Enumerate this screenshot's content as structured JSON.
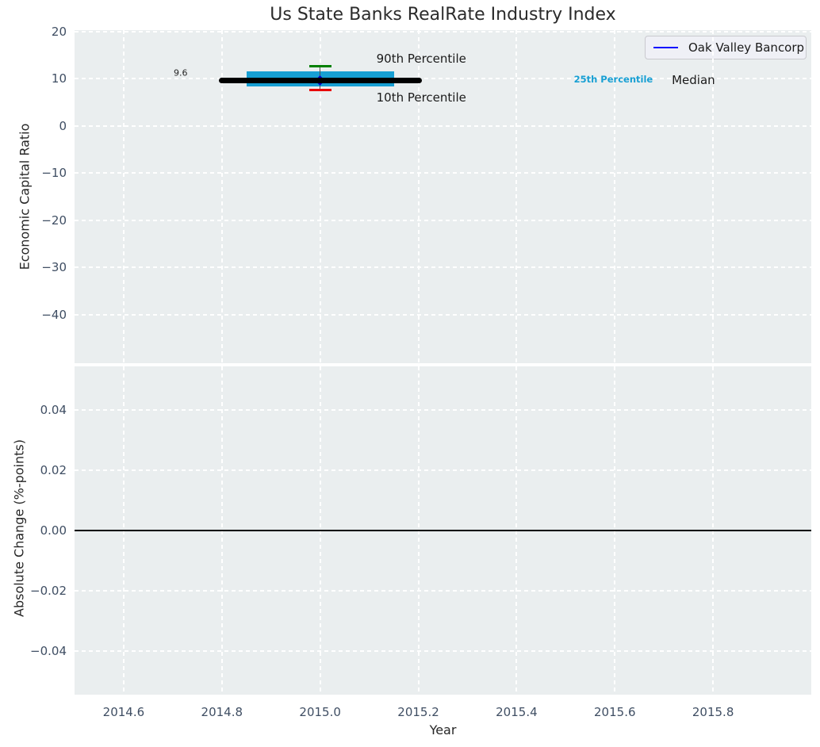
{
  "title": "Us State Banks RealRate Industry Index",
  "legend": {
    "label": "Oak Valley Bancorp",
    "line_color": "#0b0bff"
  },
  "colors": {
    "plot_bg": "#eaeeef",
    "grid": "#ffffff",
    "band": "#179fd3",
    "median_line": "#000000",
    "p90_cap": "#008000",
    "p10_cap": "#e80000",
    "whisker": "#4d4d4d",
    "company_marker": "#0000cd",
    "zero_line": "#000000",
    "tick_text": "#3f4e63",
    "label_text": "#262626"
  },
  "chart_data": [
    {
      "type": "line",
      "name": "industry-index-panel",
      "ylabel": "Economic Capital Ratio",
      "xlim": [
        2014.5,
        2016.0
      ],
      "ylim": [
        -50.3,
        20.3
      ],
      "xticks": [
        2014.6,
        2014.8,
        2015.0,
        2015.2,
        2015.4,
        2015.6,
        2015.8
      ],
      "xtick_labels": [
        "2014.6",
        "2014.8",
        "2015.0",
        "2015.2",
        "2015.4",
        "2015.6",
        "2015.8"
      ],
      "show_xtick_labels": false,
      "yticks": [
        20,
        10,
        0,
        -10,
        -20,
        -30,
        -40
      ],
      "ytick_labels": [
        "20",
        "10",
        "0",
        "−10",
        "−20",
        "−30",
        "−40"
      ],
      "grid": true,
      "median": {
        "value": 9.6,
        "x_start": 2014.8,
        "x_end": 2015.2,
        "label": "9.6"
      },
      "iqr_band": {
        "x_start": 2014.85,
        "x_end": 2015.15,
        "y_low": 8.35,
        "y_high": 11.5,
        "label": "25th Percentile"
      },
      "whiskers": {
        "x": 2015.0,
        "p90": 12.7,
        "p10": 7.6,
        "p90_label": "90th Percentile",
        "p10_label": "10th Percentile"
      },
      "company_point": {
        "series": "Oak Valley Bancorp",
        "x": 2015.0,
        "y": 9.7
      },
      "annotations": [
        {
          "text": "90th Percentile",
          "x": 2015.206,
          "y": 14.3,
          "style": "large"
        },
        {
          "text": "10th Percentile",
          "x": 2015.206,
          "y": 6.0,
          "style": "large"
        },
        {
          "text": "25th Percentile",
          "x": 2015.597,
          "y": 9.9,
          "style": "cyan"
        },
        {
          "text": "Median",
          "x": 2015.76,
          "y": 9.7,
          "style": "large"
        },
        {
          "text": "9.6",
          "x": 2014.716,
          "y": 11.2,
          "style": "small"
        }
      ]
    },
    {
      "type": "line",
      "name": "absolute-change-panel",
      "ylabel": "Absolute Change (%-points)",
      "xlabel": "Year",
      "xlim": [
        2014.5,
        2016.0
      ],
      "ylim": [
        -0.0545,
        0.0545
      ],
      "xticks": [
        2014.6,
        2014.8,
        2015.0,
        2015.2,
        2015.4,
        2015.6,
        2015.8
      ],
      "xtick_labels": [
        "2014.6",
        "2014.8",
        "2015.0",
        "2015.2",
        "2015.4",
        "2015.6",
        "2015.8"
      ],
      "show_xtick_labels": true,
      "yticks": [
        0.04,
        0.02,
        0,
        -0.02,
        -0.04
      ],
      "ytick_labels": [
        "0.04",
        "0.02",
        "0.00",
        "−0.02",
        "−0.04"
      ],
      "grid": true,
      "zero_line": 0
    }
  ]
}
